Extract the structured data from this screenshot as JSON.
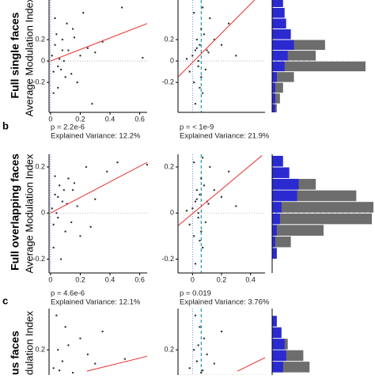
{
  "panel_labels": [
    "b",
    "c"
  ],
  "row_labels": [
    {
      "title": "Full single faces",
      "axis": "Average Modulation Index"
    },
    {
      "title": "Full overlapping faces",
      "axis": "Average Modulation Index"
    },
    {
      "title": "us faces",
      "axis": "dulation Index"
    }
  ],
  "chart_data": [
    {
      "type": "scatter",
      "color": "#333333",
      "fit_color": "#e8413c",
      "x": [
        0.01,
        0.02,
        0.03,
        0.05,
        0.06,
        0.08,
        0.1,
        0.12,
        0.15,
        0.18,
        0.2,
        0.22,
        0.25,
        0.3,
        0.35,
        0.48,
        0.02,
        0.04,
        0.07,
        0.09,
        0.11,
        0.14,
        0.03,
        0.05,
        0.16,
        0.62,
        0.28,
        0.08
      ],
      "y": [
        0.05,
        -0.1,
        0.15,
        -0.05,
        0.02,
        0.2,
        -0.15,
        0.1,
        0.3,
        -0.2,
        0.05,
        0.45,
        0.12,
        0.08,
        0.18,
        0.5,
        -0.3,
        0.25,
        -0.08,
        0.0,
        0.35,
        -0.12,
        0.4,
        -0.25,
        0.22,
        0.03,
        -0.4,
        0.1
      ],
      "fit": {
        "x": [
          0,
          0.65
        ],
        "y": [
          0.0,
          0.35
        ]
      },
      "xlim": [
        -0.01,
        0.65
      ],
      "ylim": [
        -0.48,
        0.57
      ],
      "xticks": [
        0,
        0.2,
        0.4,
        0.6
      ],
      "yticks": [
        -0.2,
        0,
        0.2
      ],
      "zero_lines": true,
      "annotations": [
        "p = 2.2e-6",
        "Explained Variance: 12.2%"
      ]
    },
    {
      "type": "scatter",
      "color": "#333333",
      "fit_color": "#e8413c",
      "dashed_color": "#1a9bb5",
      "x": [
        -0.02,
        0.0,
        0.01,
        0.02,
        0.03,
        0.04,
        0.05,
        0.06,
        0.07,
        0.08,
        0.1,
        0.12,
        0.15,
        0.2,
        0.25,
        0.02,
        0.04,
        0.06,
        0.01,
        -0.04,
        0.09,
        0.11,
        0.03,
        0.05,
        0.3,
        0.07
      ],
      "y": [
        -0.1,
        0.05,
        -0.2,
        0.1,
        0.2,
        -0.05,
        0.15,
        0.3,
        -0.3,
        0.25,
        0.1,
        0.4,
        0.2,
        0.15,
        0.35,
        -0.4,
        0.0,
        -0.15,
        0.45,
        0.02,
        -0.08,
        0.08,
        0.12,
        -0.25,
        0.05,
        0.5
      ],
      "fit": {
        "x": [
          -0.1,
          0.45
        ],
        "y": [
          -0.15,
          0.6
        ]
      },
      "xlim": [
        -0.1,
        0.5
      ],
      "ylim": [
        -0.48,
        0.57
      ],
      "xticks": [],
      "yticks": [
        -0.2,
        0,
        0.2
      ],
      "zero_lines": true,
      "dashed_x": 0.06,
      "annotations": [
        "p = < 1e-9",
        "Explained Variance: 21.9%"
      ]
    },
    {
      "type": "histogram",
      "orientation": "horizontal",
      "bins": [
        -0.5,
        -0.4,
        -0.3,
        -0.2,
        -0.1,
        0,
        0.1,
        0.2,
        0.3,
        0.4,
        0.5,
        0.6
      ],
      "series": [
        {
          "name": "gray",
          "color": "#6d6d6d",
          "values": [
            3,
            5,
            7,
            14,
            60,
            28,
            34,
            0,
            0,
            0,
            0
          ]
        },
        {
          "name": "blue",
          "color": "#2a2ad0",
          "values": [
            2,
            2,
            2,
            3,
            8,
            10,
            14,
            12,
            9,
            8,
            7
          ]
        }
      ],
      "xlim": [
        0,
        60
      ],
      "ylim": [
        -0.48,
        0.57
      ],
      "reference_line": 0
    },
    {
      "type": "scatter",
      "color": "#333333",
      "fit_color": "#e8413c",
      "x": [
        0.01,
        0.02,
        0.03,
        0.05,
        0.06,
        0.08,
        0.1,
        0.12,
        0.15,
        0.18,
        0.2,
        0.24,
        0.3,
        0.38,
        0.45,
        0.02,
        0.04,
        0.07,
        0.09,
        0.11,
        0.14,
        0.03,
        0.05,
        0.16,
        0.65,
        0.27
      ],
      "y": [
        0.02,
        -0.05,
        0.08,
        -0.02,
        0.12,
        0.05,
        -0.08,
        0.15,
        0.1,
        0.03,
        -0.1,
        0.2,
        0.06,
        0.18,
        0.22,
        -0.15,
        0.0,
        -0.2,
        0.1,
        0.04,
        -0.04,
        0.16,
        0.07,
        0.13,
        0.21,
        -0.06
      ],
      "fit": {
        "x": [
          0,
          0.65
        ],
        "y": [
          0.0,
          0.22
        ]
      },
      "xlim": [
        -0.01,
        0.65
      ],
      "ylim": [
        -0.26,
        0.255
      ],
      "xticks": [
        0,
        0.2,
        0.4,
        0.6
      ],
      "yticks": [
        -0.2,
        0,
        0.2
      ],
      "zero_lines": true,
      "annotations": [
        "p = 4.6e-6",
        "Explained Variance: 12.1%"
      ]
    },
    {
      "type": "scatter",
      "color": "#333333",
      "fit_color": "#e8413c",
      "dashed_color": "#1a9bb5",
      "x": [
        -0.02,
        0.0,
        0.01,
        0.02,
        0.03,
        0.04,
        0.05,
        0.06,
        0.07,
        0.08,
        0.1,
        0.12,
        0.15,
        0.2,
        0.25,
        0.02,
        0.04,
        0.06,
        0.01,
        -0.04,
        0.09,
        0.11,
        0.03,
        0.05,
        0.3,
        0.07
      ],
      "y": [
        -0.05,
        0.02,
        -0.1,
        0.05,
        0.1,
        -0.02,
        0.08,
        0.15,
        -0.15,
        0.12,
        0.05,
        0.2,
        0.1,
        0.07,
        0.18,
        -0.22,
        0.0,
        -0.08,
        0.22,
        0.01,
        -0.04,
        0.04,
        0.06,
        -0.12,
        0.03,
        0.24
      ],
      "fit": {
        "x": [
          -0.1,
          0.48
        ],
        "y": [
          -0.055,
          0.25
        ]
      },
      "xlim": [
        -0.1,
        0.5
      ],
      "ylim": [
        -0.26,
        0.255
      ],
      "xticks": [
        0,
        0.2,
        0.4
      ],
      "yticks": [
        -0.2,
        0,
        0.2
      ],
      "zero_lines": true,
      "dashed_x": 0.06,
      "annotations": [
        "p = 0.019",
        "Explained Variance: 3.76%"
      ]
    },
    {
      "type": "histogram",
      "orientation": "horizontal",
      "bins": [
        -0.2,
        -0.15,
        -0.1,
        -0.05,
        0,
        0.05,
        0.1,
        0.15,
        0.2,
        0.25
      ],
      "series": [
        {
          "name": "gray",
          "color": "#6d6d6d",
          "values": [
            2,
            12,
            33,
            64,
            65,
            54,
            28,
            0,
            0
          ]
        },
        {
          "name": "blue",
          "color": "#2a2ad0",
          "values": [
            3,
            2,
            3,
            5,
            6,
            16,
            17,
            11,
            7
          ]
        }
      ],
      "xlim": [
        0,
        65
      ],
      "ylim": [
        -0.26,
        0.255
      ],
      "reference_line": 0
    },
    {
      "type": "scatter",
      "color": "#333333",
      "fit_color": "#e8413c",
      "x": [
        0.02,
        0.05,
        0.08,
        0.1,
        0.15,
        0.2,
        0.25,
        0.3,
        0.04,
        0.12,
        0.35,
        0.06,
        0.5
      ],
      "y": [
        0.12,
        0.2,
        0.15,
        0.3,
        0.1,
        0.25,
        0.18,
        0.14,
        0.35,
        0.22,
        0.28,
        0.11,
        0.16
      ],
      "fit": {
        "x": [
          0.245,
          0.65
        ],
        "y": [
          0.107,
          0.172
        ]
      },
      "xlim": [
        -0.01,
        0.65
      ],
      "ylim": [
        0.09,
        0.38
      ],
      "xticks": [],
      "yticks": [
        0.2
      ]
    },
    {
      "type": "scatter",
      "color": "#333333",
      "fit_color": "#e8413c",
      "dashed_color": "#1a9bb5",
      "x": [
        -0.02,
        0.01,
        0.03,
        0.05,
        0.06,
        0.08,
        0.1,
        0.15,
        0.02,
        0.04,
        0.2,
        0.07
      ],
      "y": [
        0.12,
        0.2,
        0.15,
        0.3,
        0.1,
        0.25,
        0.18,
        0.14,
        0.35,
        0.22,
        0.28,
        0.11
      ],
      "fit": {
        "x": [
          0.31,
          0.5
        ],
        "y": [
          0.107,
          0.166
        ]
      },
      "xlim": [
        -0.1,
        0.5
      ],
      "ylim": [
        0.09,
        0.38
      ],
      "xticks": [],
      "yticks": [
        0.2
      ],
      "zero_lines": true,
      "dashed_x": 0.06
    },
    {
      "type": "histogram",
      "orientation": "horizontal",
      "bins": [
        0.1,
        0.15,
        0.2,
        0.25,
        0.3,
        0.35
      ],
      "series": [
        {
          "name": "gray",
          "color": "#6d6d6d",
          "values": [
            24,
            20,
            10,
            0,
            0
          ]
        },
        {
          "name": "blue",
          "color": "#2a2ad0",
          "values": [
            7,
            9,
            8,
            6,
            3
          ]
        }
      ],
      "xlim": [
        0,
        65
      ],
      "ylim": [
        0.09,
        0.38
      ]
    }
  ]
}
